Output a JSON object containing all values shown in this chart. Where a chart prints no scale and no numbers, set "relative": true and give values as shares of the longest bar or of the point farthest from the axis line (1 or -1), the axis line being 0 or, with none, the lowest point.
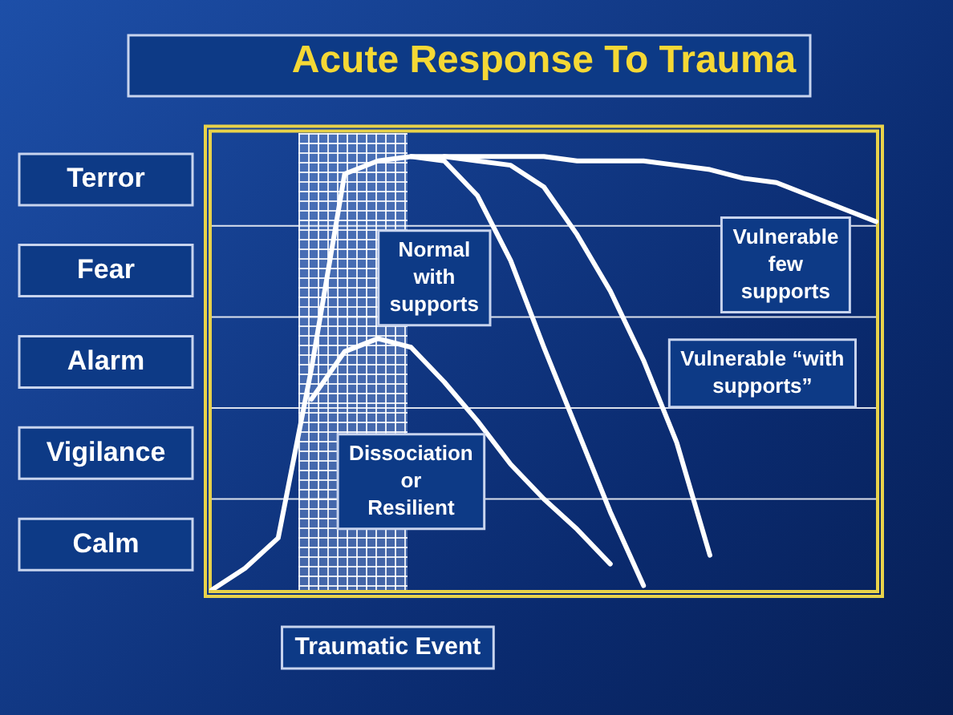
{
  "chart_data": {
    "type": "line",
    "title": "Acute Response To Trauma",
    "relative": true,
    "categories": [
      null,
      null,
      null,
      null,
      null,
      null,
      null,
      null,
      null,
      null,
      null,
      null,
      null,
      null,
      null,
      null,
      null,
      null,
      null,
      null,
      null
    ],
    "legend": false,
    "marker": "none",
    "line_style": "solid",
    "series": [
      {
        "color": "#ffffff",
        "values": [
          0,
          0.05,
          0.12,
          0.51,
          0.96,
          0.99,
          1,
          0.99,
          0.91,
          0.76,
          0.56,
          0.37,
          0.18,
          0.01,
          null,
          null,
          null,
          null,
          null,
          null,
          null
        ]
      },
      {
        "color": "#ffffff",
        "values": [
          null,
          null,
          null,
          0.44,
          0.55,
          0.58,
          0.56,
          0.48,
          0.39,
          0.29,
          0.21,
          0.14,
          0.06,
          null,
          null,
          null,
          null,
          null,
          null,
          null,
          null
        ]
      },
      {
        "color": "#ffffff",
        "values": [
          null,
          null,
          null,
          null,
          null,
          null,
          1,
          1,
          0.99,
          0.98,
          0.93,
          0.82,
          0.69,
          0.53,
          0.34,
          0.08,
          null,
          null,
          null,
          null,
          null
        ]
      },
      {
        "color": "#ffffff",
        "values": [
          null,
          null,
          null,
          null,
          null,
          null,
          null,
          1,
          1,
          1,
          1,
          0.99,
          0.99,
          0.99,
          0.98,
          0.97,
          0.95,
          0.94,
          0.91,
          0.88,
          0.85
        ]
      }
    ],
    "ref_lines": [
      {
        "axis": "y",
        "value": 0.21,
        "color": "#ffffff"
      },
      {
        "axis": "y",
        "value": 0.42,
        "color": "#ffffff"
      },
      {
        "axis": "y",
        "value": 0.63,
        "color": "#ffffff"
      },
      {
        "axis": "y",
        "value": 0.84,
        "color": "#ffffff"
      }
    ],
    "annotations": [
      "Normal\nwith\nsupports",
      "Vulnerable\nfew\nsupports",
      "Vulnerable “with\nsupports”",
      "Dissociation\nor\nResilient",
      "Traumatic Event",
      "Terror",
      "Fear",
      "Alarm",
      "Vigilance",
      "Calm"
    ]
  }
}
